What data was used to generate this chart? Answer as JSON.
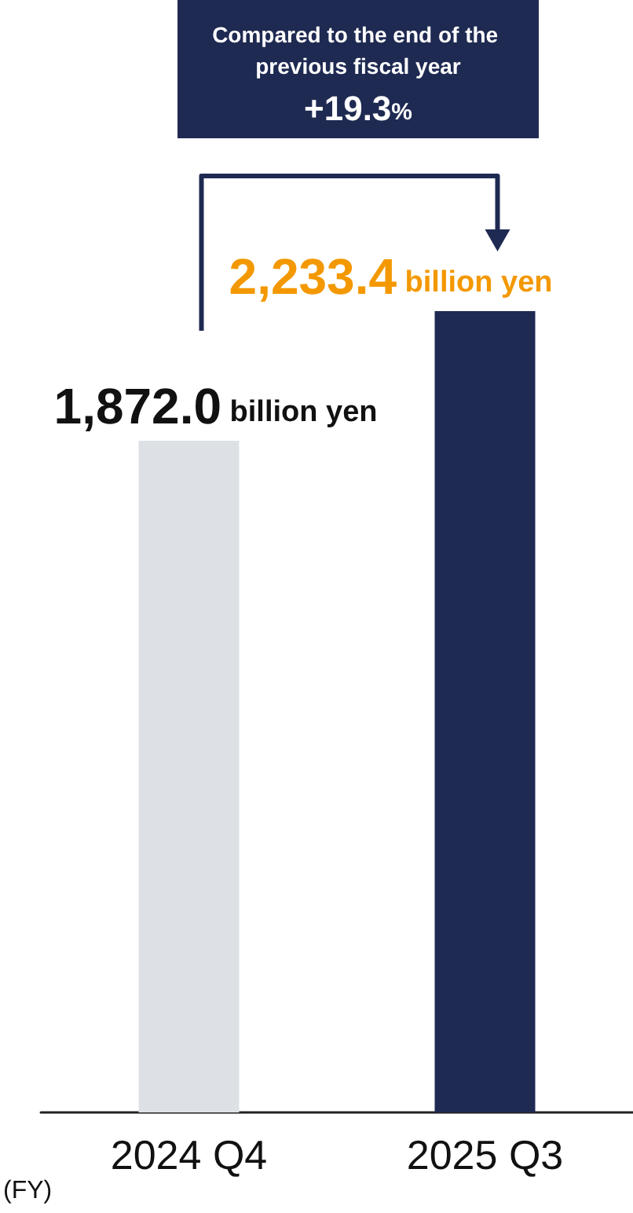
{
  "chart_data": {
    "type": "bar",
    "categories": [
      "2024 Q4",
      "2025 Q3"
    ],
    "values": [
      1872.0,
      2233.4
    ],
    "colors": [
      "#dde1e5",
      "#1f2a52"
    ],
    "value_labels": [
      "1,872.0 billion yen",
      "2,233.4 billion yen"
    ],
    "xlabel": "(FY)",
    "annotations": [
      "Compared to the end of the previous fiscal year",
      "+19.3%"
    ]
  }
}
